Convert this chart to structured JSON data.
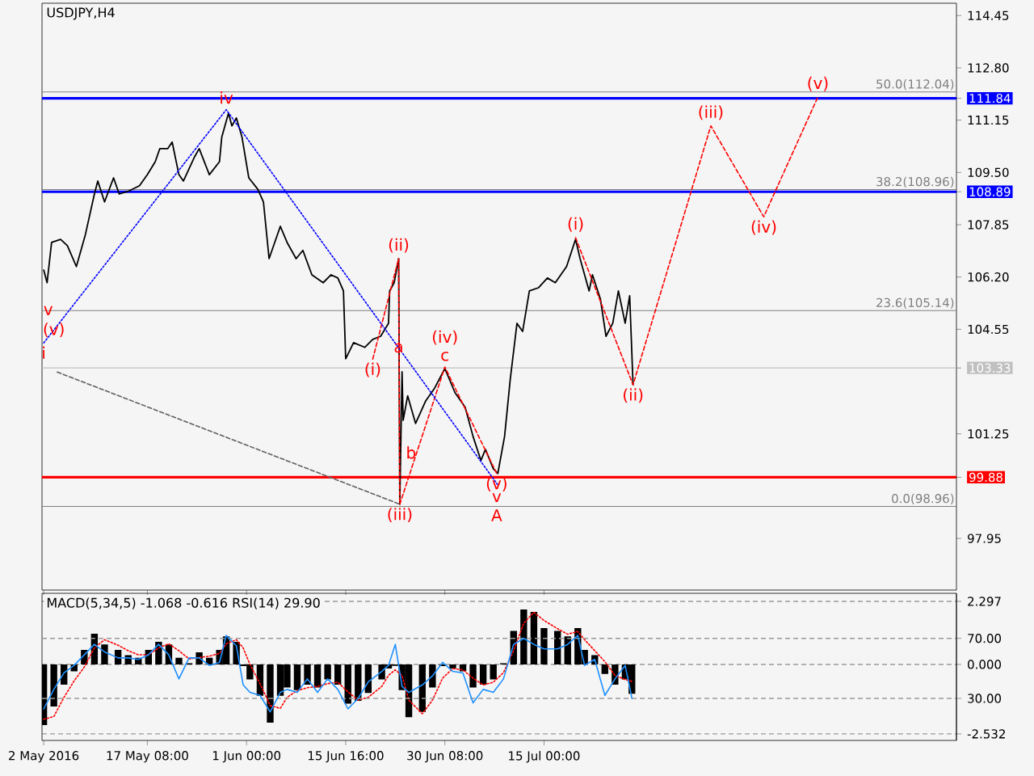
{
  "chart_data": [
    {
      "type": "line",
      "title": "USDJPY,H4",
      "xlim": [
        "2016-05-01T18:00",
        "2016-09-14T00:00"
      ],
      "ylim": [
        96.32,
        114.84
      ],
      "xticks": [
        {
          "value": "2016-05-02T00:00",
          "label": null
        },
        {
          "value": "2016-05-17T08:00",
          "label": null
        },
        {
          "value": "2016-06-01T00:00",
          "label": null
        },
        {
          "value": "2016-06-15T16:00",
          "label": null
        },
        {
          "value": "2016-06-30T08:00",
          "label": null
        },
        {
          "value": "2016-07-15T00:00",
          "label": null
        }
      ],
      "yticks": [
        114.45,
        {
          "value": 112.8,
          "label": "112.80"
        },
        111.84,
        111.15,
        {
          "value": 109.5,
          "label": "109.50"
        },
        108.89,
        107.85,
        {
          "value": 106.2,
          "label": "106.20"
        },
        104.55,
        103.33,
        101.25,
        99.88,
        97.95
      ],
      "tick_labels": "y",
      "series": [
        {
          "color": "#000000",
          "x": [
            "2016-05-02T00:00",
            "2016-05-02T12:00",
            "2016-05-03T04:00",
            "2016-05-04T12:00",
            "2016-05-05T12:00",
            "2016-05-06T20:00",
            "2016-05-08T04:00",
            "2016-05-09T12:00",
            "2016-05-10T00:00",
            "2016-05-11T00:00",
            "2016-05-12T08:00",
            "2016-05-13T04:00",
            "2016-05-14T16:00",
            "2016-05-16T04:00",
            "2016-05-17T08:00",
            "2016-05-18T12:00",
            "2016-05-19T04:00",
            "2016-05-20T08:00",
            "2016-05-21T00:00",
            "2016-05-22T00:00",
            "2016-05-22T16:00",
            "2016-05-24T08:00",
            "2016-05-25T00:00",
            "2016-05-26T12:00",
            "2016-05-28T00:00",
            "2016-05-28T08:00",
            "2016-05-29T08:00",
            "2016-05-29T20:00",
            "2016-05-30T12:00",
            "2016-05-31T08:00",
            "2016-06-01T08:00",
            "2016-06-02T16:00",
            "2016-06-03T12:00",
            "2016-06-04T08:00",
            "2016-06-05T04:00",
            "2016-06-06T00:00",
            "2016-06-07T00:00",
            "2016-06-08T08:00",
            "2016-06-09T08:00",
            "2016-06-10T16:00",
            "2016-06-12T08:00",
            "2016-06-13T12:00",
            "2016-06-14T12:00",
            "2016-06-15T08:00",
            "2016-06-15T16:00",
            "2016-06-16T20:00",
            "2016-06-18T12:00",
            "2016-06-19T16:00",
            "2016-06-20T20:00",
            "2016-06-22T00:00",
            "2016-06-22T04:00",
            "2016-06-22T20:00",
            "2016-06-23T12:00",
            "2016-06-23T16:00",
            "2016-06-24T00:00",
            "2016-06-24T04:00",
            "2016-06-24T20:00",
            "2016-06-26T00:00",
            "2016-06-27T12:00",
            "2016-06-28T20:00",
            "2016-06-30T08:00",
            "2016-07-01T20:00",
            "2016-07-03T08:00",
            "2016-07-04T12:00",
            "2016-07-05T16:00",
            "2016-07-06T08:00",
            "2016-07-07T12:00",
            "2016-07-08T04:00",
            "2016-07-09T04:00",
            "2016-07-10T00:00",
            "2016-07-11T00:00",
            "2016-07-11T20:00",
            "2016-07-12T20:00",
            "2016-07-14T04:00",
            "2016-07-15T12:00",
            "2016-07-16T16:00",
            "2016-07-18T08:00",
            "2016-07-19T16:00",
            "2016-07-20T08:00",
            "2016-07-21T16:00",
            "2016-07-22T04:00",
            "2016-07-23T08:00",
            "2016-07-24T04:00",
            "2016-07-25T04:00",
            "2016-07-26T00:00",
            "2016-07-27T00:00",
            "2016-07-27T16:00",
            "2016-07-28T04:00"
          ],
          "values": [
            106.42,
            106.02,
            107.29,
            107.39,
            107.19,
            106.53,
            107.54,
            108.82,
            109.23,
            108.57,
            109.33,
            108.82,
            108.92,
            109.08,
            109.43,
            109.84,
            110.25,
            110.25,
            110.46,
            109.43,
            109.23,
            110.0,
            110.25,
            109.43,
            109.84,
            110.61,
            111.37,
            110.97,
            111.22,
            110.61,
            109.33,
            108.97,
            108.57,
            106.78,
            107.29,
            107.8,
            107.29,
            106.78,
            107.04,
            106.27,
            106.02,
            106.27,
            106.17,
            105.76,
            103.62,
            104.13,
            103.98,
            104.23,
            104.33,
            104.74,
            105.76,
            106.02,
            106.78,
            99.03,
            103.21,
            101.68,
            102.45,
            101.58,
            102.29,
            102.7,
            103.31,
            102.55,
            102.09,
            101.17,
            100.41,
            100.76,
            100.15,
            100.0,
            101.17,
            102.96,
            104.74,
            104.48,
            105.76,
            105.86,
            106.17,
            106.02,
            106.53,
            107.39,
            106.78,
            105.76,
            106.27,
            105.51,
            104.33,
            104.74,
            105.76,
            104.74,
            105.61,
            102.8
          ]
        },
        {
          "color": "#ff0000",
          "line_style": "dashed",
          "x": [
            "2016-06-19T16:00",
            "2016-06-23T12:00",
            "2016-06-23T16:00",
            "2016-06-30T08:00",
            "2016-07-08T00:00",
            "2016-07-14T00:00",
            "2016-07-19T16:00",
            "2016-07-28T04:00",
            "2016-08-08T16:00",
            "2016-08-16T12:00",
            "2016-08-24T12:00"
          ],
          "values": [
            103.61,
            106.78,
            99.03,
            103.36,
            100.0,
            null,
            107.44,
            102.8,
            110.97,
            108.1,
            111.88
          ]
        },
        {
          "color": "#0000ff",
          "line_style": "dotted",
          "x": [
            "2016-05-02T00:00",
            "2016-05-29T00:00",
            "2016-07-08T04:00"
          ],
          "values": [
            104.12,
            111.48,
            99.64
          ]
        },
        {
          "color": "#606060",
          "line_style": "dashed",
          "x": [
            "2016-05-04T00:00",
            "2016-06-23T16:00"
          ],
          "values": [
            103.2,
            99.03
          ]
        }
      ],
      "ref_lines": [
        {
          "axis": "y",
          "value": 112.04,
          "label": "50.0(112.04)",
          "color": "#808080"
        },
        {
          "axis": "y",
          "value": 111.84,
          "color": "#0000ff"
        },
        {
          "axis": "y",
          "value": 108.96,
          "label": "38.2(108.96)",
          "color": "#808080"
        },
        {
          "axis": "y",
          "value": 108.89,
          "color": "#0000ff"
        },
        {
          "axis": "y",
          "value": 105.14,
          "label": "23.6(105.14)",
          "color": "#808080"
        },
        {
          "axis": "y",
          "value": 103.33,
          "color": "#c0c0c0"
        },
        {
          "axis": "y",
          "value": 99.88,
          "color": "#ff0000"
        },
        {
          "axis": "y",
          "value": 98.96,
          "label": "0.0(98.96)",
          "color": "#808080"
        }
      ],
      "annotations": [
        {
          "text": "iv",
          "x": "2016-05-29T00:00",
          "y": 111.48
        },
        {
          "text": "i",
          "x": "2016-05-02T00:00",
          "y": 104.12
        },
        {
          "text": "v",
          "x": "2016-05-02T16:00",
          "y": 105.14
        },
        {
          "text": "(v)",
          "x": "2016-05-03T12:00",
          "y": 104.53
        },
        {
          "text": "(i)",
          "x": "2016-06-19T16:00",
          "y": 103.61
        },
        {
          "text": "(ii)",
          "x": "2016-06-23T12:00",
          "y": 106.78
        },
        {
          "text": "a",
          "x": "2016-06-23T12:00",
          "y": 103.96
        },
        {
          "text": "b",
          "x": "2016-06-25T08:00",
          "y": 100.66
        },
        {
          "text": "(iii)",
          "x": "2016-06-23T16:00",
          "y": 99.03
        },
        {
          "text": "c",
          "x": "2016-06-30T08:00",
          "y": 103.36
        },
        {
          "text": "(iv)",
          "x": "2016-06-30T08:00",
          "y": 103.36
        },
        {
          "text": "(v)",
          "x": "2016-07-08T00:00",
          "y": 100.0
        },
        {
          "text": "v",
          "x": "2016-07-08T00:00",
          "y": 100.0
        },
        {
          "text": "A",
          "x": "2016-07-08T00:00",
          "y": 100.0
        },
        {
          "text": "(i)",
          "x": "2016-07-19T16:00",
          "y": 107.44
        },
        {
          "text": "(ii)",
          "x": "2016-07-28T04:00",
          "y": 102.8
        },
        {
          "text": "(iii)",
          "x": "2016-08-08T16:00",
          "y": 110.97
        },
        {
          "text": "(iv)",
          "x": "2016-08-16T12:00",
          "y": 108.1
        },
        {
          "text": "(v)",
          "x": "2016-08-24T12:00",
          "y": 111.88
        }
      ]
    },
    {
      "type": "bar",
      "title": "MACD(5,34,5) -1.068 -0.616 RSI(14) 29.90",
      "xlim": [
        "2016-05-01T18:00",
        "2016-09-14T00:00"
      ],
      "ylim": [
        -2.77,
        2.59
      ],
      "y2lim": [
        2,
        100
      ],
      "xticks": [
        {
          "value": "2016-05-02T00:00",
          "label": "2 May 2016"
        },
        {
          "value": "2016-05-17T08:00",
          "label": "17 May 08:00"
        },
        {
          "value": "2016-06-01T00:00",
          "label": "1 Jun 00:00"
        },
        {
          "value": "2016-06-15T16:00",
          "label": "15 Jun 16:00"
        },
        {
          "value": "2016-06-30T08:00",
          "label": "30 Jun 08:00"
        },
        {
          "value": "2016-07-15T00:00",
          "label": "15 Jul 00:00"
        }
      ],
      "yticks": [
        2.297,
        {
          "value": 0,
          "label": "0.000"
        },
        -2.532
      ],
      "y2ticks": [
        {
          "value": 70,
          "label": "70.00"
        },
        {
          "value": 30,
          "label": "30.00"
        }
      ],
      "grid": "y",
      "x": [
        "2016-05-02T00:00",
        "2016-05-03T12:00",
        "2016-05-05T00:00",
        "2016-05-06T12:00",
        "2016-05-08T00:00",
        "2016-05-09T12:00",
        "2016-05-11T00:00",
        "2016-05-13T00:00",
        "2016-05-14T12:00",
        "2016-05-16T00:00",
        "2016-05-17T12:00",
        "2016-05-19T00:00",
        "2016-05-20T12:00",
        "2016-05-22T00:00",
        "2016-05-23T12:00",
        "2016-05-25T00:00",
        "2016-05-26T12:00",
        "2016-05-28T00:00",
        "2016-05-29T00:00",
        "2016-05-30T12:00",
        "2016-05-31T12:00",
        "2016-06-01T12:00",
        "2016-06-03T00:00",
        "2016-06-04T12:00",
        "2016-06-06T00:00",
        "2016-06-07T00:00",
        "2016-06-08T12:00",
        "2016-06-10T00:00",
        "2016-06-11T12:00",
        "2016-06-13T00:00",
        "2016-06-14T12:00",
        "2016-06-16T00:00",
        "2016-06-17T12:00",
        "2016-06-19T00:00",
        "2016-06-21T00:00",
        "2016-06-22T00:00",
        "2016-06-23T00:00",
        "2016-06-24T00:00",
        "2016-06-25T00:00",
        "2016-06-27T00:00",
        "2016-06-28T12:00",
        "2016-06-30T00:00",
        "2016-07-01T12:00",
        "2016-07-03T00:00",
        "2016-07-04T12:00",
        "2016-07-06T00:00",
        "2016-07-07T12:00",
        "2016-07-09T00:00",
        "2016-07-10T12:00",
        "2016-07-12T00:00",
        "2016-07-13T12:00",
        "2016-07-15T00:00",
        "2016-07-17T00:00",
        "2016-07-18T12:00",
        "2016-07-20T00:00",
        "2016-07-21T00:00",
        "2016-07-22T12:00",
        "2016-07-24T00:00",
        "2016-07-25T12:00",
        "2016-07-27T00:00",
        "2016-07-28T00:00"
      ],
      "series": [
        {
          "type": "bar",
          "color": "#000000",
          "values": [
            -2.21,
            -1.53,
            -0.74,
            -0.25,
            0.53,
            1.12,
            0.73,
            0.53,
            0.34,
            0.24,
            0.53,
            0.82,
            0.73,
            0.24,
            0.04,
            0.44,
            0.24,
            0.53,
            1.02,
            0.82,
            -0.06,
            -0.55,
            -1.14,
            -2.12,
            -1.14,
            -0.84,
            -0.94,
            -0.74,
            -0.84,
            -0.55,
            -0.74,
            -1.43,
            -1.33,
            -1.04,
            -0.55,
            -0.15,
            -0.05,
            -0.94,
            -1.92,
            -1.73,
            -0.84,
            -0.06,
            -0.15,
            -0.25,
            -0.84,
            -0.74,
            -0.55,
            0.04,
            1.22,
            2.0,
            1.91,
            1.32,
            1.22,
            1.02,
            1.32,
            0.53,
            0.34,
            -0.35,
            -0.74,
            -0.55,
            -1.07
          ]
        },
        {
          "type": "line",
          "color": "#ff0000",
          "line_style": "dotted",
          "values": [
            -2.0,
            -1.9,
            -1.2,
            -0.6,
            -0.1,
            0.6,
            0.9,
            0.7,
            0.5,
            0.35,
            0.35,
            0.6,
            0.75,
            0.5,
            0.2,
            0.25,
            0.3,
            0.4,
            0.75,
            0.9,
            0.6,
            0.0,
            -0.7,
            -1.5,
            -1.6,
            -1.2,
            -0.95,
            -0.85,
            -0.8,
            -0.7,
            -0.65,
            -1.0,
            -1.3,
            -1.2,
            -0.8,
            -0.4,
            -0.2,
            -0.4,
            -1.3,
            -1.8,
            -1.3,
            -0.5,
            -0.15,
            -0.2,
            -0.5,
            -0.75,
            -0.65,
            -0.3,
            0.5,
            1.5,
            1.9,
            1.6,
            1.3,
            1.1,
            1.2,
            0.9,
            0.5,
            0.1,
            -0.4,
            -0.55,
            -0.62
          ]
        },
        {
          "type": "line",
          "color": "#1e90ff",
          "axis": "y2",
          "values": [
            23,
            36,
            47,
            52,
            59,
            66,
            61,
            57,
            57,
            56,
            59,
            66,
            59,
            43,
            57,
            57,
            52,
            54,
            72,
            65,
            39,
            34,
            32,
            21,
            34,
            36,
            34,
            43,
            34,
            43,
            36,
            23,
            30,
            41,
            48,
            52,
            66,
            38,
            34,
            39,
            45,
            54,
            48,
            47,
            27,
            36,
            34,
            43,
            66,
            70,
            66,
            63,
            63,
            66,
            72,
            52,
            56,
            32,
            43,
            52,
            30
          ]
        }
      ]
    }
  ]
}
